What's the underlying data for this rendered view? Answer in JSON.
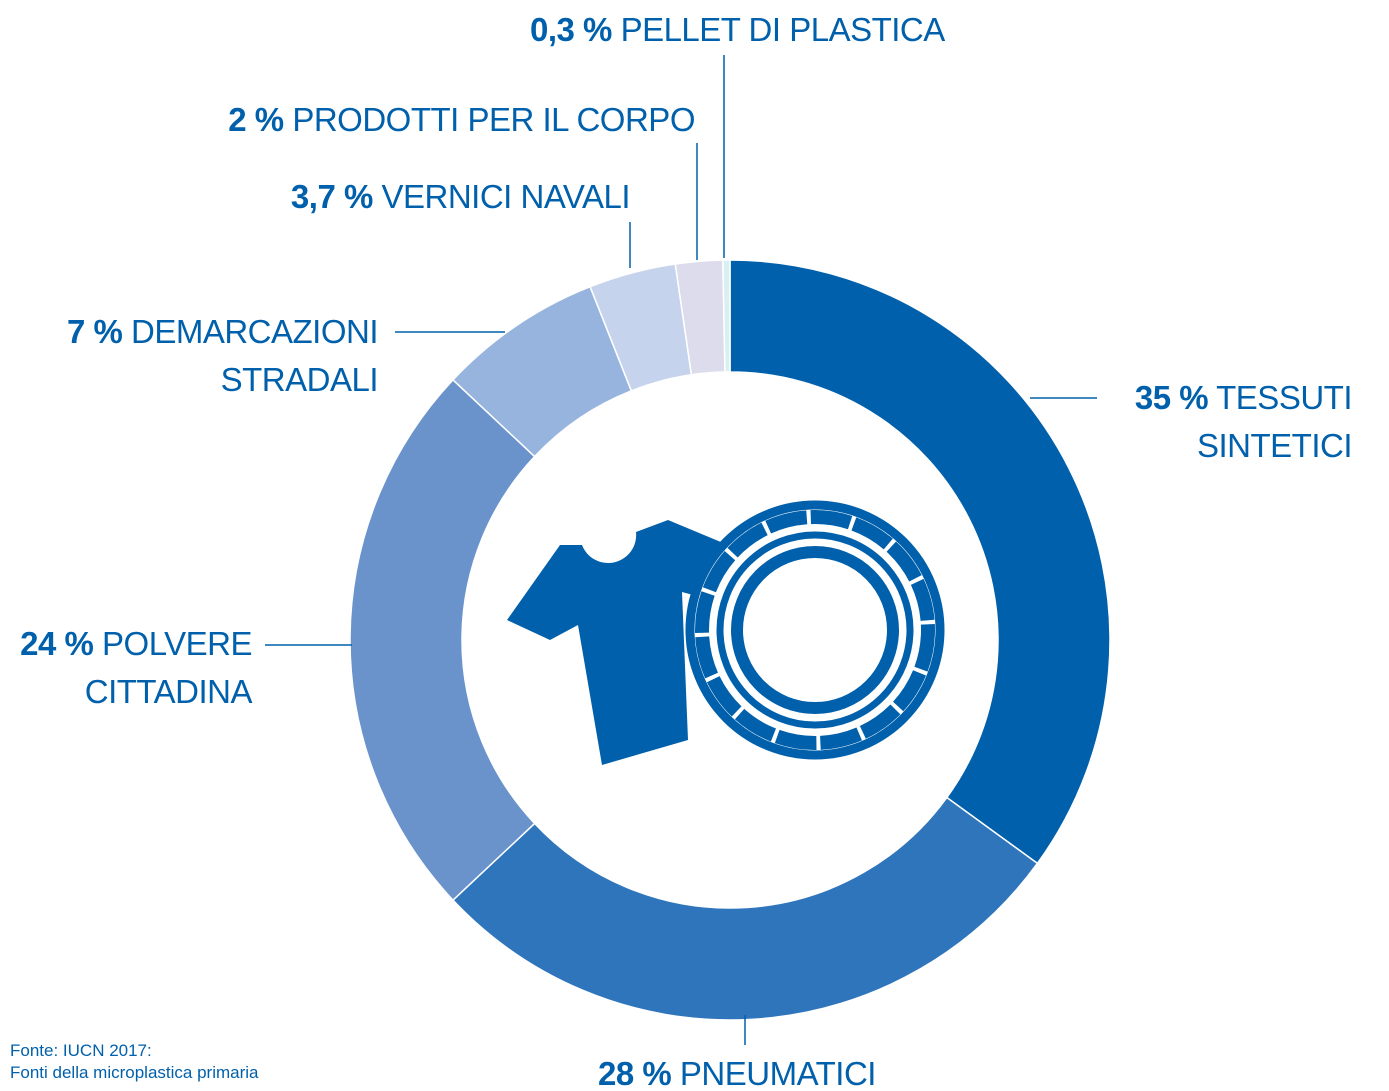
{
  "chart_data": {
    "type": "donut",
    "categories": [
      "TESSUTI SINTETICI",
      "PNEUMATICI",
      "POLVERE CITTADINA",
      "DEMARCAZIONI STRADALI",
      "VERNICI NAVALI",
      "PRODOTTI PER IL CORPO",
      "PELLET DI PLASTICA"
    ],
    "values": [
      35,
      28,
      24,
      7,
      3.7,
      2,
      0.3
    ],
    "value_labels": [
      "35 %",
      "28 %",
      "24 %",
      "7 %",
      "3,7 %",
      "2 %",
      "0,3 %"
    ],
    "colors": [
      "#0060ab",
      "#2f75bc",
      "#6a93cc",
      "#97b4de",
      "#c5d3ec",
      "#dcdcec",
      "#d8f0f4"
    ],
    "source": [
      "Fonte: IUCN 2017:",
      "Fonti della microplastica primaria"
    ]
  }
}
